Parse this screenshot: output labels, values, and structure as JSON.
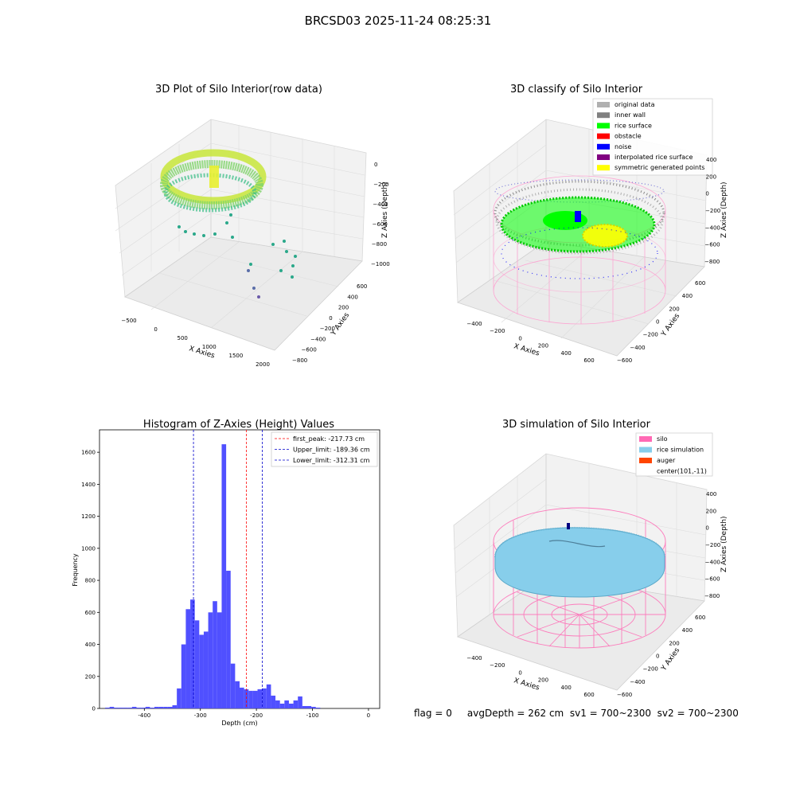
{
  "suptitle": "BRCSD03 2025-11-24 08:25:31",
  "colors": {
    "hist_bar": "#5050ff",
    "first_peak": "#ff0000",
    "limits": "#0000cc",
    "silo": "#ff69b4",
    "rice_sim": "#87ceeb",
    "auger": "#ff4500",
    "rice_surface": "#00ff00",
    "obstacle": "#ff0000",
    "noise": "#0000ff",
    "interp": "#800080",
    "symmetric": "#ffff00",
    "original": "#b0b0b0",
    "inner_wall": "#808080"
  },
  "panels": {
    "raw": {
      "title": "3D Plot of Silo Interior(row data)",
      "xlabel": "X Axies",
      "ylabel": "Y Axies",
      "zlabel": "Z Axies (Depth)",
      "xticks": [
        "−500",
        "0",
        "500",
        "1000",
        "1500",
        "2000"
      ],
      "yticks": [
        "600",
        "400",
        "200",
        "0",
        "−200",
        "−400",
        "−600",
        "−800"
      ],
      "zticks": [
        "0",
        "−200",
        "−400",
        "−600",
        "−800",
        "−1000"
      ]
    },
    "classify": {
      "title": "3D classify of Silo Interior",
      "xlabel": "X Axies",
      "ylabel": "Y Axies",
      "zlabel": "Z Axies (Depth)",
      "xticks": [
        "−400",
        "−200",
        "0",
        "200",
        "400",
        "600"
      ],
      "yticks": [
        "600",
        "400",
        "200",
        "0",
        "−200",
        "−400",
        "−600"
      ],
      "zticks": [
        "400",
        "200",
        "0",
        "−200",
        "−400",
        "−600",
        "−800"
      ],
      "legend": [
        {
          "label": "original data",
          "color": "#b0b0b0"
        },
        {
          "label": "inner wall",
          "color": "#808080"
        },
        {
          "label": "rice surface",
          "color": "#00ff00"
        },
        {
          "label": "obstacle",
          "color": "#ff0000"
        },
        {
          "label": "noise",
          "color": "#0000ff"
        },
        {
          "label": "interpolated rice surface",
          "color": "#800080"
        },
        {
          "label": "symmetric generated points",
          "color": "#ffff00"
        }
      ]
    },
    "simulation": {
      "title": "3D simulation of Silo Interior",
      "xlabel": "X Axies",
      "ylabel": "Y Axies",
      "zlabel": "Z Axies (Depth)",
      "xticks": [
        "−400",
        "−200",
        "0",
        "200",
        "400",
        "600"
      ],
      "yticks": [
        "600",
        "400",
        "200",
        "0",
        "−200",
        "−400",
        "−600"
      ],
      "zticks": [
        "400",
        "200",
        "0",
        "−200",
        "−400",
        "−600",
        "−800"
      ],
      "legend": [
        {
          "label": "silo",
          "color": "#ff69b4"
        },
        {
          "label": "rice simulation",
          "color": "#87ceeb"
        },
        {
          "label": "auger",
          "color": "#ff4500"
        },
        {
          "label": "center(101,-11)",
          "color": ""
        }
      ]
    }
  },
  "footer": "flag = 0     avgDepth = 262 cm  sv1 = 700~2300  sv2 = 700~2300",
  "chart_data": [
    {
      "type": "bar",
      "title": "Histogram of Z-Axies (Height) Values",
      "xlabel": "Depth (cm)",
      "ylabel": "Frequency",
      "xlim": [
        -480,
        20
      ],
      "ylim": [
        0,
        1740
      ],
      "xticks": [
        -400,
        -300,
        -200,
        -100,
        0
      ],
      "yticks": [
        0,
        200,
        400,
        600,
        800,
        1000,
        1200,
        1400,
        1600
      ],
      "bin_edges_start": -470,
      "bin_width": 8,
      "values": [
        5,
        10,
        5,
        5,
        5,
        5,
        10,
        5,
        5,
        10,
        5,
        10,
        10,
        10,
        10,
        20,
        125,
        400,
        620,
        680,
        550,
        460,
        480,
        600,
        670,
        600,
        1650,
        860,
        280,
        170,
        130,
        120,
        110,
        110,
        120,
        125,
        150,
        80,
        50,
        30,
        50,
        30,
        50,
        75,
        15,
        15,
        10,
        5
      ],
      "vlines": [
        {
          "x": -217.73,
          "label": "first_peak: -217.73 cm",
          "style": "first_peak"
        },
        {
          "x": -189.36,
          "label": "Upper_limit: -189.36 cm",
          "style": "limits"
        },
        {
          "x": -312.31,
          "label": "Lower_limit: -312.31 cm",
          "style": "limits"
        }
      ],
      "legend_position": "top-right",
      "grid": false
    }
  ]
}
